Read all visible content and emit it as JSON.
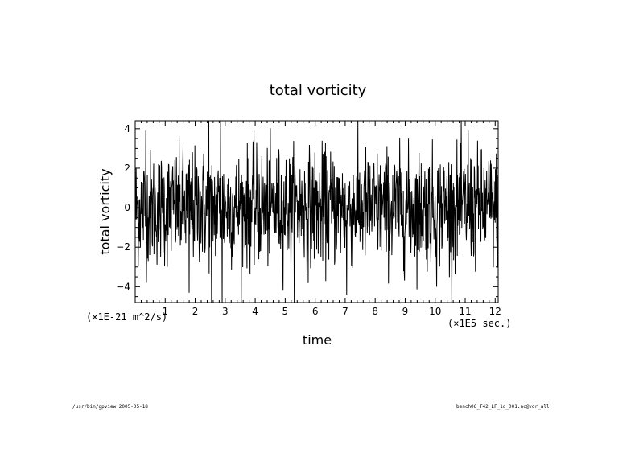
{
  "chart_data": {
    "type": "line",
    "title": "total vorticity",
    "xlabel": "time",
    "ylabel": "total vorticity",
    "x_units": "(×1E5 sec.)",
    "y_units": "(×1E-21 m^2/s)",
    "xlim": [
      0.0,
      12.1
    ],
    "ylim": [
      -4.8,
      4.4
    ],
    "xticks": [
      1,
      2,
      3,
      4,
      5,
      6,
      7,
      8,
      9,
      10,
      11,
      12
    ],
    "yticks": [
      4,
      2,
      0,
      -2,
      -4
    ],
    "grid": false,
    "line_color": "#000000",
    "series": [
      {
        "x_start": 0.0,
        "x_step": 0.0101,
        "values_note": "random-looking signal, mean ~0, std ~1.5",
        "extremes": [
          {
            "x": 2.45,
            "y": 4.4
          },
          {
            "x": 2.55,
            "y": -4.8
          },
          {
            "x": 2.85,
            "y": 4.4
          },
          {
            "x": 2.9,
            "y": -4.8
          },
          {
            "x": 7.05,
            "y": -4.4
          },
          {
            "x": 0.35,
            "y": 3.9
          },
          {
            "x": 11.1,
            "y": 3.9
          },
          {
            "x": 10.05,
            "y": -4.0
          },
          {
            "x": 1.8,
            "y": -4.3
          }
        ]
      }
    ]
  },
  "footer": {
    "left": "/usr/bin/gpview  2005-05-18",
    "right": "bench06_T42_LF_1d_001.nc@vor_all"
  }
}
